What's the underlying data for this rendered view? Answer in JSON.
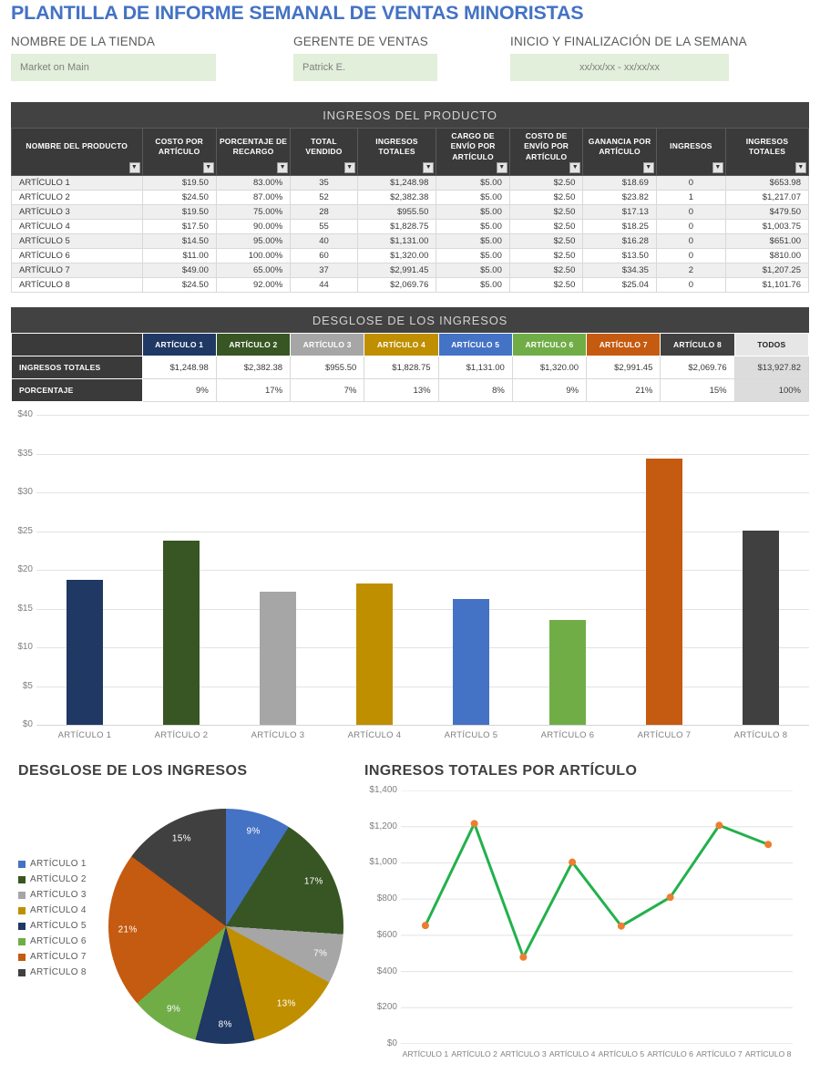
{
  "page": {
    "title": "PLANTILLA DE INFORME SEMANAL DE VENTAS MINORISTAS"
  },
  "fields": [
    {
      "label": "NOMBRE DE LA TIENDA",
      "value": "Market on Main"
    },
    {
      "label": "GERENTE DE VENTAS",
      "value": "Patrick E."
    },
    {
      "label": "INICIO Y FINALIZACIÓN DE LA SEMANA",
      "value": "xx/xx/xx - xx/xx/xx"
    }
  ],
  "colors": {
    "title_blue": "#4472C4",
    "input_bg": "#E2EFDA",
    "table_dark": "#3A3A3A",
    "row_alt_bg": "#EFEFEF",
    "todos_header_bg": "#E7E6E6",
    "todos_cell_bg": "#DCDCDC",
    "article_colors": [
      "#1F3864",
      "#375623",
      "#A6A6A6",
      "#BF8F00",
      "#4472C4",
      "#70AD47",
      "#C55A11",
      "#404040"
    ]
  },
  "product_table": {
    "title": "INGRESOS DEL PRODUCTO",
    "columns": [
      "NOMBRE DEL PRODUCTO",
      "COSTO POR ARTÍCULO",
      "PORCENTAJE DE RECARGO",
      "TOTAL VENDIDO",
      "INGRESOS TOTALES",
      "CARGO DE ENVÍO POR ARTÍCULO",
      "COSTO DE ENVÍO POR ARTÍCULO",
      "GANANCIA POR ARTÍCULO",
      "INGRESOS",
      "INGRESOS TOTALES"
    ],
    "rows": [
      [
        "ARTÍCULO 1",
        "$19.50",
        "83.00%",
        "35",
        "$1,248.98",
        "$5.00",
        "$2.50",
        "$18.69",
        "0",
        "$653.98"
      ],
      [
        "ARTÍCULO 2",
        "$24.50",
        "87.00%",
        "52",
        "$2,382.38",
        "$5.00",
        "$2.50",
        "$23.82",
        "1",
        "$1,217.07"
      ],
      [
        "ARTÍCULO 3",
        "$19.50",
        "75.00%",
        "28",
        "$955.50",
        "$5.00",
        "$2.50",
        "$17.13",
        "0",
        "$479.50"
      ],
      [
        "ARTÍCULO 4",
        "$17.50",
        "90.00%",
        "55",
        "$1,828.75",
        "$5.00",
        "$2.50",
        "$18.25",
        "0",
        "$1,003.75"
      ],
      [
        "ARTÍCULO 5",
        "$14.50",
        "95.00%",
        "40",
        "$1,131.00",
        "$5.00",
        "$2.50",
        "$16.28",
        "0",
        "$651.00"
      ],
      [
        "ARTÍCULO 6",
        "$11.00",
        "100.00%",
        "60",
        "$1,320.00",
        "$5.00",
        "$2.50",
        "$13.50",
        "0",
        "$810.00"
      ],
      [
        "ARTÍCULO 7",
        "$49.00",
        "65.00%",
        "37",
        "$2,991.45",
        "$5.00",
        "$2.50",
        "$34.35",
        "2",
        "$1,207.25"
      ],
      [
        "ARTÍCULO 8",
        "$24.50",
        "92.00%",
        "44",
        "$2,069.76",
        "$5.00",
        "$2.50",
        "$25.04",
        "0",
        "$1,101.76"
      ]
    ]
  },
  "breakdown_table": {
    "title": "DESGLOSE DE LOS INGRESOS",
    "column_headers": [
      "ARTÍCULO 1",
      "ARTÍCULO 2",
      "ARTÍCULO 3",
      "ARTÍCULO 4",
      "ARTÍCULO 5",
      "ARTÍCULO 6",
      "ARTÍCULO 7",
      "ARTÍCULO 8",
      "TODOS"
    ],
    "rows": [
      {
        "label": "INGRESOS TOTALES",
        "values": [
          "$1,248.98",
          "$2,382.38",
          "$955.50",
          "$1,828.75",
          "$1,131.00",
          "$1,320.00",
          "$2,991.45",
          "$2,069.76",
          "$13,927.82"
        ]
      },
      {
        "label": "PORCENTAJE",
        "values": [
          "9%",
          "17%",
          "7%",
          "13%",
          "8%",
          "9%",
          "21%",
          "15%",
          "100%"
        ]
      }
    ]
  },
  "chart_data": [
    {
      "type": "bar",
      "title": "",
      "categories": [
        "ARTÍCULO 1",
        "ARTÍCULO 2",
        "ARTÍCULO 3",
        "ARTÍCULO 4",
        "ARTÍCULO 5",
        "ARTÍCULO 6",
        "ARTÍCULO 7",
        "ARTÍCULO 8"
      ],
      "values": [
        18.69,
        23.82,
        17.13,
        18.25,
        16.28,
        13.5,
        34.35,
        25.04
      ],
      "colors": [
        "#1F3864",
        "#375623",
        "#A6A6A6",
        "#BF8F00",
        "#4472C4",
        "#70AD47",
        "#C55A11",
        "#404040"
      ],
      "ylabel": "",
      "xlabel": "",
      "ylim": [
        0,
        40
      ],
      "ytick_step": 5,
      "ytick_prefix": "$",
      "grid": true,
      "legend_position": "none"
    },
    {
      "type": "pie",
      "title": "DESGLOSE DE LOS INGRESOS",
      "labels": [
        "ARTÍCULO 1",
        "ARTÍCULO 2",
        "ARTÍCULO 3",
        "ARTÍCULO 4",
        "ARTÍCULO 5",
        "ARTÍCULO 6",
        "ARTÍCULO 7",
        "ARTÍCULO 8"
      ],
      "values": [
        1248.98,
        2382.38,
        955.5,
        1828.75,
        1131.0,
        1320.0,
        2991.45,
        2069.76
      ],
      "slice_labels": [
        "9%",
        "17%",
        "7%",
        "13%",
        "8%",
        "9%",
        "21%",
        "15%"
      ],
      "colors": [
        "#4472C4",
        "#375623",
        "#A6A6A6",
        "#BF8F00",
        "#1F3864",
        "#70AD47",
        "#C55A11",
        "#404040"
      ],
      "legend_position": "left",
      "start_angle_deg": 0,
      "direction": "clockwise"
    },
    {
      "type": "line",
      "title": "INGRESOS TOTALES POR ARTÍCULO",
      "x": [
        "ARTÍCULO 1",
        "ARTÍCULO 2",
        "ARTÍCULO 3",
        "ARTÍCULO 4",
        "ARTÍCULO 5",
        "ARTÍCULO 6",
        "ARTÍCULO 7",
        "ARTÍCULO 8"
      ],
      "values": [
        653.98,
        1217.07,
        479.5,
        1003.75,
        651.0,
        810.0,
        1207.25,
        1101.76
      ],
      "line_color": "#22B14C",
      "marker_color": "#ED7D31",
      "ylim": [
        0,
        1400
      ],
      "ytick_step": 200,
      "ytick_prefix": "$",
      "grid": true,
      "legend_position": "none"
    }
  ]
}
